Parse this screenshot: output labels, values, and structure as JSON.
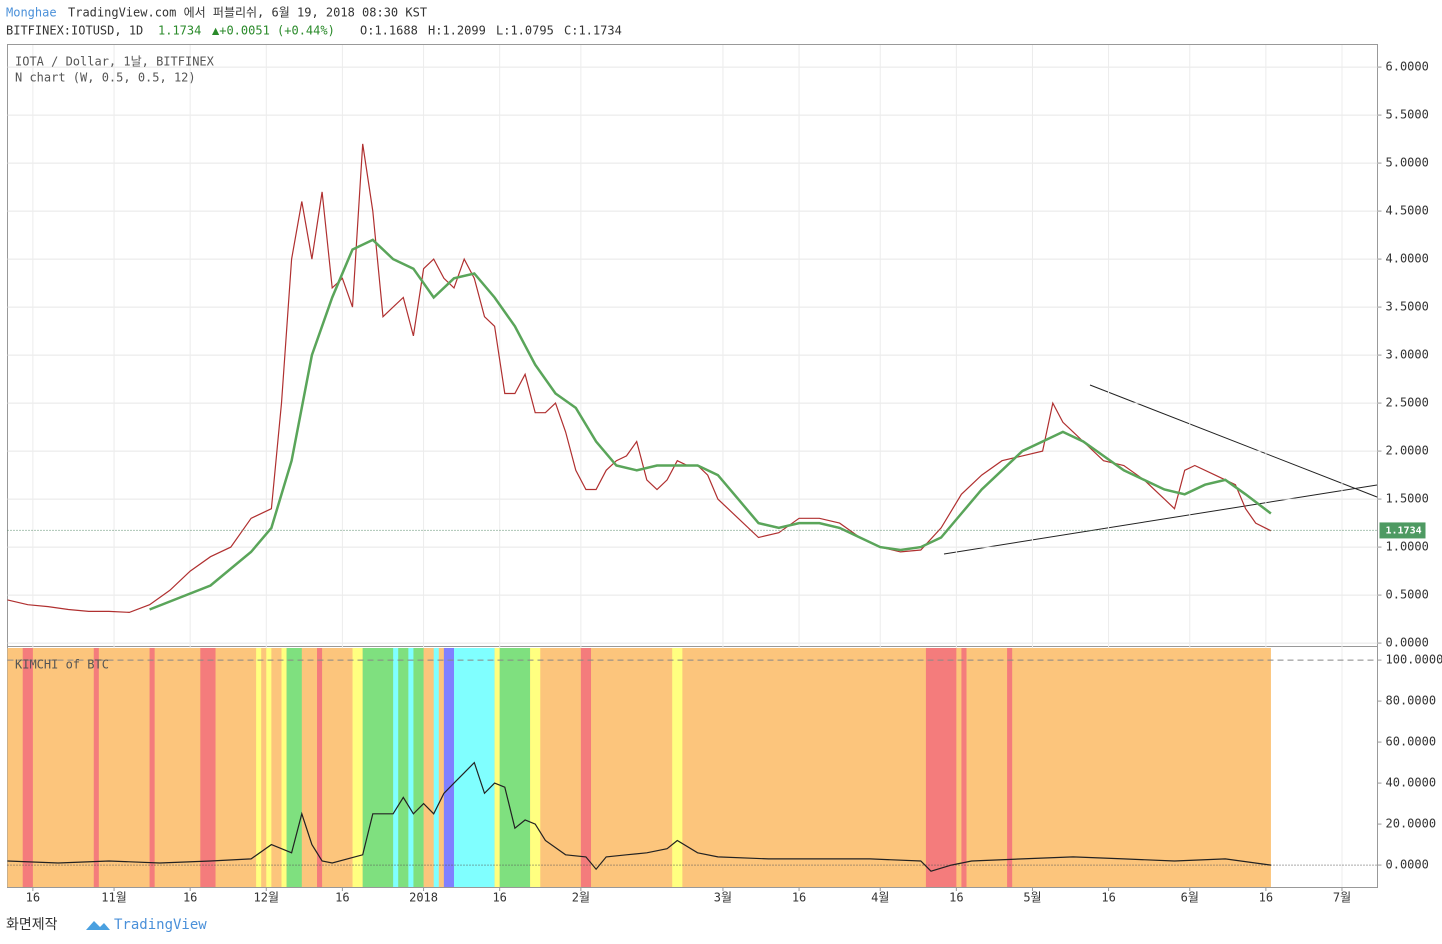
{
  "header": {
    "author": "Monghae",
    "published": "TradingView.com 에서 퍼블리쉬, 6월 19, 2018 08:30 KST",
    "symbol": "BITFINEX:IOTUSD, 1D",
    "last": "1.1734",
    "change": "▲+0.0051 (+0.44%)",
    "ohlc": [
      "O:1.1688",
      "H:1.2099",
      "L:1.0795",
      "C:1.1734"
    ]
  },
  "footer": {
    "credit": "화면제작",
    "brand": "TradingView"
  },
  "chart_data": [
    {
      "type": "line",
      "legend": [
        "IOTA / Dollar, 1날, BITFINEX",
        "N chart (W, 0.5, 0.5, 12)"
      ],
      "last_price": {
        "value": 1.1734,
        "label": "1.1734"
      },
      "xlim": [
        0,
        270
      ],
      "ylim": [
        -0.02,
        6.23
      ],
      "xticks": [
        {
          "value": 5,
          "label": "16"
        },
        {
          "value": 21,
          "label": "11월"
        },
        {
          "value": 36,
          "label": "16"
        },
        {
          "value": 51,
          "label": "12월"
        },
        {
          "value": 66,
          "label": "16"
        },
        {
          "value": 82,
          "label": "2018"
        },
        {
          "value": 97,
          "label": "16"
        },
        {
          "value": 113,
          "label": "2월"
        },
        {
          "value": 141,
          "label": "3월"
        },
        {
          "value": 156,
          "label": "16"
        },
        {
          "value": 172,
          "label": "4월"
        },
        {
          "value": 187,
          "label": "16"
        },
        {
          "value": 202,
          "label": "5월"
        },
        {
          "value": 217,
          "label": "16"
        },
        {
          "value": 233,
          "label": "6월"
        },
        {
          "value": 248,
          "label": "16"
        },
        {
          "value": 263,
          "label": "7월"
        }
      ],
      "yticks": [
        {
          "value": 0,
          "label": "0.0000"
        },
        {
          "value": 0.5,
          "label": "0.5000"
        },
        {
          "value": 1,
          "label": "1.0000"
        },
        {
          "value": 1.5,
          "label": "1.5000"
        },
        {
          "value": 2,
          "label": "2.0000"
        },
        {
          "value": 2.5,
          "label": "2.5000"
        },
        {
          "value": 3,
          "label": "3.0000"
        },
        {
          "value": 3.5,
          "label": "3.5000"
        },
        {
          "value": 4,
          "label": "4.0000"
        },
        {
          "value": 4.5,
          "label": "4.5000"
        },
        {
          "value": 5,
          "label": "5.0000"
        },
        {
          "value": 5.5,
          "label": "5.5000"
        },
        {
          "value": 6,
          "label": "6.0000"
        }
      ],
      "series": [
        {
          "color": "#b03030",
          "x": [
            0,
            4,
            8,
            12,
            16,
            20,
            24,
            28,
            32,
            36,
            40,
            44,
            48,
            52,
            54,
            56,
            58,
            60,
            62,
            64,
            66,
            68,
            70,
            72,
            74,
            76,
            78,
            80,
            82,
            84,
            86,
            88,
            90,
            92,
            94,
            96,
            98,
            100,
            102,
            104,
            106,
            108,
            110,
            112,
            114,
            116,
            118,
            120,
            122,
            124,
            126,
            128,
            130,
            132,
            134,
            136,
            138,
            140,
            144,
            148,
            152,
            156,
            160,
            164,
            168,
            172,
            176,
            180,
            184,
            188,
            192,
            196,
            200,
            204,
            206,
            208,
            210,
            212,
            216,
            220,
            224,
            228,
            230,
            232,
            234,
            238,
            242,
            244,
            246,
            249
          ],
          "values": [
            0.45,
            0.4,
            0.38,
            0.35,
            0.33,
            0.33,
            0.32,
            0.4,
            0.55,
            0.75,
            0.9,
            1.0,
            1.3,
            1.4,
            2.5,
            4.0,
            4.6,
            4.0,
            4.7,
            3.7,
            3.8,
            3.5,
            5.2,
            4.5,
            3.4,
            3.5,
            3.6,
            3.2,
            3.9,
            4.0,
            3.8,
            3.7,
            4.0,
            3.8,
            3.4,
            3.3,
            2.6,
            2.6,
            2.8,
            2.4,
            2.4,
            2.5,
            2.2,
            1.8,
            1.6,
            1.6,
            1.8,
            1.9,
            1.95,
            2.1,
            1.7,
            1.6,
            1.7,
            1.9,
            1.85,
            1.85,
            1.75,
            1.5,
            1.3,
            1.1,
            1.15,
            1.3,
            1.3,
            1.25,
            1.1,
            1.0,
            0.95,
            0.97,
            1.2,
            1.55,
            1.75,
            1.9,
            1.95,
            2.0,
            2.5,
            2.3,
            2.2,
            2.1,
            1.9,
            1.85,
            1.7,
            1.5,
            1.4,
            1.8,
            1.85,
            1.75,
            1.65,
            1.4,
            1.25,
            1.17
          ]
        },
        {
          "color": "#5aa55a",
          "x": [
            28,
            40,
            48,
            52,
            56,
            60,
            64,
            68,
            72,
            76,
            80,
            84,
            88,
            92,
            96,
            100,
            104,
            108,
            112,
            116,
            120,
            124,
            128,
            132,
            136,
            140,
            144,
            148,
            152,
            156,
            160,
            164,
            168,
            172,
            176,
            180,
            184,
            188,
            192,
            196,
            200,
            204,
            208,
            212,
            216,
            220,
            224,
            228,
            232,
            236,
            240,
            244,
            249
          ],
          "values": [
            0.35,
            0.6,
            0.95,
            1.2,
            1.9,
            3.0,
            3.6,
            4.1,
            4.2,
            4.0,
            3.9,
            3.6,
            3.8,
            3.85,
            3.6,
            3.3,
            2.9,
            2.6,
            2.45,
            2.1,
            1.85,
            1.8,
            1.85,
            1.85,
            1.85,
            1.75,
            1.5,
            1.25,
            1.2,
            1.25,
            1.25,
            1.2,
            1.1,
            1.0,
            0.97,
            1.0,
            1.1,
            1.35,
            1.6,
            1.8,
            2.0,
            2.1,
            2.2,
            2.1,
            1.95,
            1.8,
            1.7,
            1.6,
            1.55,
            1.65,
            1.7,
            1.55,
            1.35
          ]
        }
      ]
    },
    {
      "type": "line",
      "legend": [
        "KIMCHI of BTC"
      ],
      "xlim": [
        0,
        270
      ],
      "ylim": [
        -10.7,
        105.9
      ],
      "yticks": [
        {
          "value": 0,
          "label": "0.0000"
        },
        {
          "value": 20,
          "label": "20.0000"
        },
        {
          "value": 40,
          "label": "40.0000"
        },
        {
          "value": 60,
          "label": "60.0000"
        },
        {
          "value": 80,
          "label": "80.0000"
        },
        {
          "value": 100,
          "label": "100.0000"
        }
      ],
      "background": {
        "color": "#fcc57c",
        "x": [
          0,
          249
        ]
      },
      "bands": [
        [
          3,
          5,
          "#f47c7c"
        ],
        [
          17,
          18,
          "#f47c7c"
        ],
        [
          28,
          29,
          "#f47c7c"
        ],
        [
          38,
          41,
          "#f47c7c"
        ],
        [
          49,
          50,
          "#ffff80"
        ],
        [
          51,
          52,
          "#ffff80"
        ],
        [
          54,
          55,
          "#ffff80"
        ],
        [
          55,
          58,
          "#7fe07f"
        ],
        [
          61,
          62,
          "#f47c7c"
        ],
        [
          68,
          70,
          "#ffff80"
        ],
        [
          70,
          82,
          "#7fe07f"
        ],
        [
          76,
          77,
          "#80ffff"
        ],
        [
          79,
          80,
          "#80ffff"
        ],
        [
          84,
          85,
          "#80ffff"
        ],
        [
          86,
          88,
          "#8080ff"
        ],
        [
          88,
          96,
          "#80ffff"
        ],
        [
          96,
          97,
          "#ffff80"
        ],
        [
          97,
          103,
          "#7fe07f"
        ],
        [
          103,
          105,
          "#ffff80"
        ],
        [
          113,
          115,
          "#f47c7c"
        ],
        [
          131,
          133,
          "#ffff80"
        ],
        [
          181,
          187,
          "#f47c7c"
        ],
        [
          188,
          189,
          "#f47c7c"
        ],
        [
          197,
          198,
          "#f47c7c"
        ]
      ],
      "series": [
        {
          "color": "#222222",
          "x": [
            0,
            10,
            20,
            30,
            40,
            48,
            52,
            56,
            58,
            60,
            62,
            64,
            70,
            72,
            76,
            78,
            80,
            82,
            84,
            86,
            88,
            90,
            92,
            94,
            96,
            98,
            100,
            102,
            104,
            106,
            110,
            114,
            116,
            118,
            122,
            126,
            130,
            132,
            136,
            140,
            150,
            160,
            170,
            180,
            182,
            186,
            190,
            200,
            210,
            220,
            230,
            240,
            249
          ],
          "values": [
            2,
            1,
            2,
            1,
            2,
            3,
            10,
            6,
            25,
            10,
            2,
            1,
            5,
            25,
            25,
            33,
            25,
            30,
            25,
            35,
            40,
            45,
            50,
            35,
            40,
            38,
            18,
            22,
            20,
            12,
            5,
            4,
            -2,
            4,
            5,
            6,
            8,
            12,
            6,
            4,
            3,
            3,
            3,
            2,
            -3,
            0,
            2,
            3,
            4,
            3,
            2,
            3,
            0
          ]
        }
      ]
    }
  ]
}
